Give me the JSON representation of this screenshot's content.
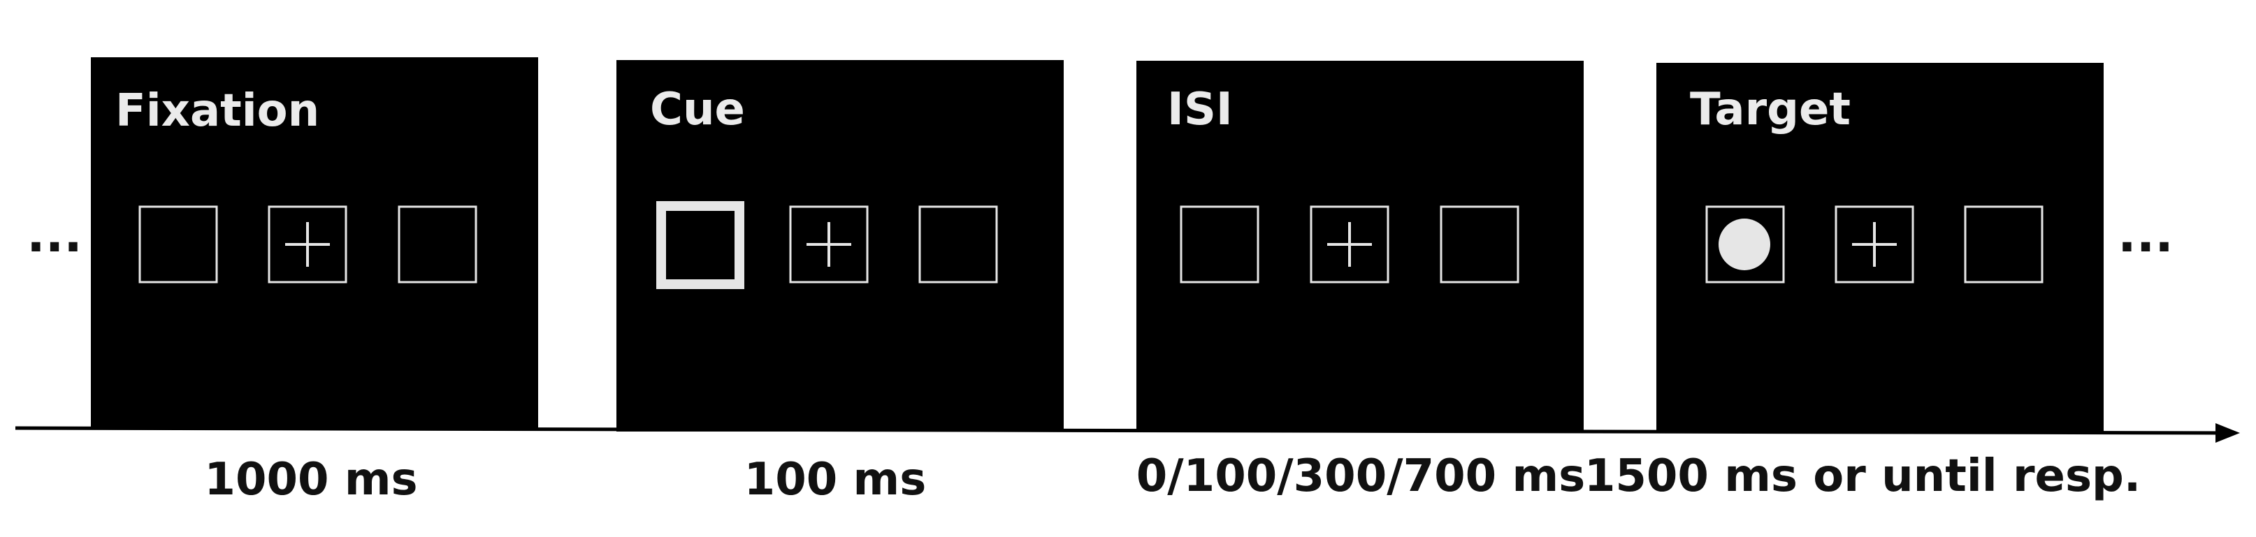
{
  "ellipsis_left": "...",
  "ellipsis_right": "...",
  "colors": {
    "screen_background": "#000000",
    "frame_line": "#e6e6e6",
    "cue_frame": "#e6e6e6",
    "target_dot": "#e6e6e6",
    "timeline": "#000000",
    "text": "#111111"
  },
  "screens": [
    {
      "title": "Fixation",
      "duration": "1000 ms",
      "cued_box": "none",
      "target_box": "none"
    },
    {
      "title": "Cue",
      "duration": "100 ms",
      "cued_box": "left",
      "target_box": "none"
    },
    {
      "title": "ISI",
      "duration": "0/100/300/700 ms",
      "cued_box": "none",
      "target_box": "none"
    },
    {
      "title": "Target",
      "duration": "1500 ms or until resp.",
      "cued_box": "none",
      "target_box": "left"
    }
  ]
}
